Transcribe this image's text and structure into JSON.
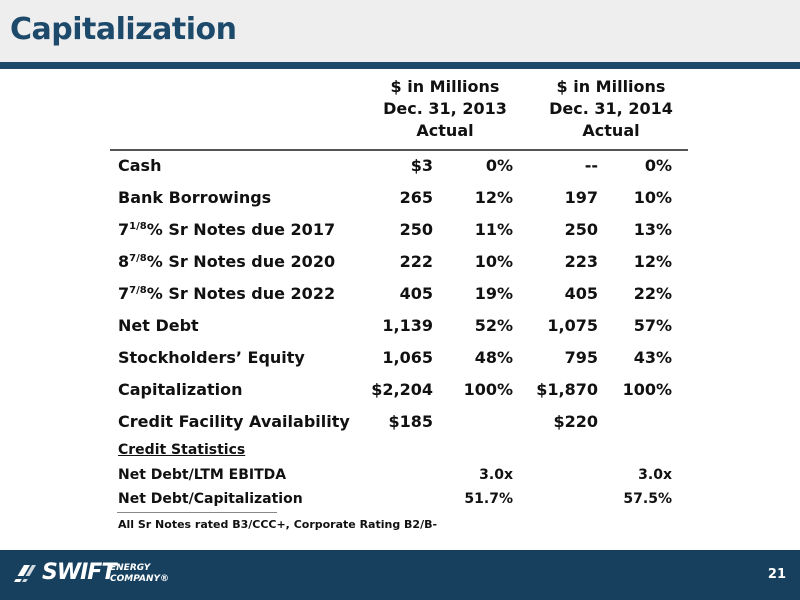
{
  "title": "Capitalization",
  "columns": [
    {
      "line1": "$ in Millions",
      "line2": "Dec. 31, 2013",
      "line3": "Actual"
    },
    {
      "line1": "$ in Millions",
      "line2": "Dec. 31, 2014",
      "line3": "Actual"
    }
  ],
  "rows": [
    {
      "label": "Cash",
      "v2013": "$3",
      "p2013": "0%",
      "v2014": "--",
      "p2014": "0%"
    },
    {
      "label": "Bank Borrowings",
      "v2013": "265",
      "p2013": "12%",
      "v2014": "197",
      "p2014": "10%"
    },
    {
      "label_prefix": "7",
      "label_frac": "1/8",
      "label_suffix": "% Sr Notes due 2017",
      "v2013": "250",
      "p2013": "11%",
      "v2014": "250",
      "p2014": "13%"
    },
    {
      "label_prefix": "8",
      "label_frac": "7/8",
      "label_suffix": "% Sr Notes due 2020",
      "v2013": "222",
      "p2013": "10%",
      "v2014": "223",
      "p2014": "12%"
    },
    {
      "label_prefix": "7",
      "label_frac": "7/8",
      "label_suffix": "% Sr Notes due 2022",
      "v2013": "405",
      "p2013": "19%",
      "v2014": "405",
      "p2014": "22%"
    },
    {
      "label": "Net Debt",
      "v2013": "1,139",
      "p2013": "52%",
      "v2014": "1,075",
      "p2014": "57%"
    },
    {
      "label": "Stockholders’ Equity",
      "v2013": "1,065",
      "p2013": "48%",
      "v2014": "795",
      "p2014": "43%"
    },
    {
      "label": "Capitalization",
      "v2013": "$2,204",
      "p2013": "100%",
      "v2014": "$1,870",
      "p2014": "100%"
    },
    {
      "label": "Credit Facility Availability",
      "v2013": "$185",
      "p2013": "",
      "v2014": "$220",
      "p2014": ""
    }
  ],
  "credit_statistics": {
    "heading": "Credit Statistics",
    "rows": [
      {
        "label": "Net Debt/LTM EBITDA",
        "v2013": "3.0x",
        "v2014": "3.0x"
      },
      {
        "label": "Net Debt/Capitalization",
        "v2013": "51.7%",
        "v2014": "57.5%"
      }
    ]
  },
  "footnote": "All Sr Notes rated B3/CCC+, Corporate Rating B2/B-",
  "footer": {
    "logo_word": "SWIFT",
    "logo_sub1": "ENERGY",
    "logo_sub2": "COMPANY®",
    "page_number": "21"
  },
  "colors": {
    "brand": "#1d4a6b",
    "footer": "#17405f"
  }
}
